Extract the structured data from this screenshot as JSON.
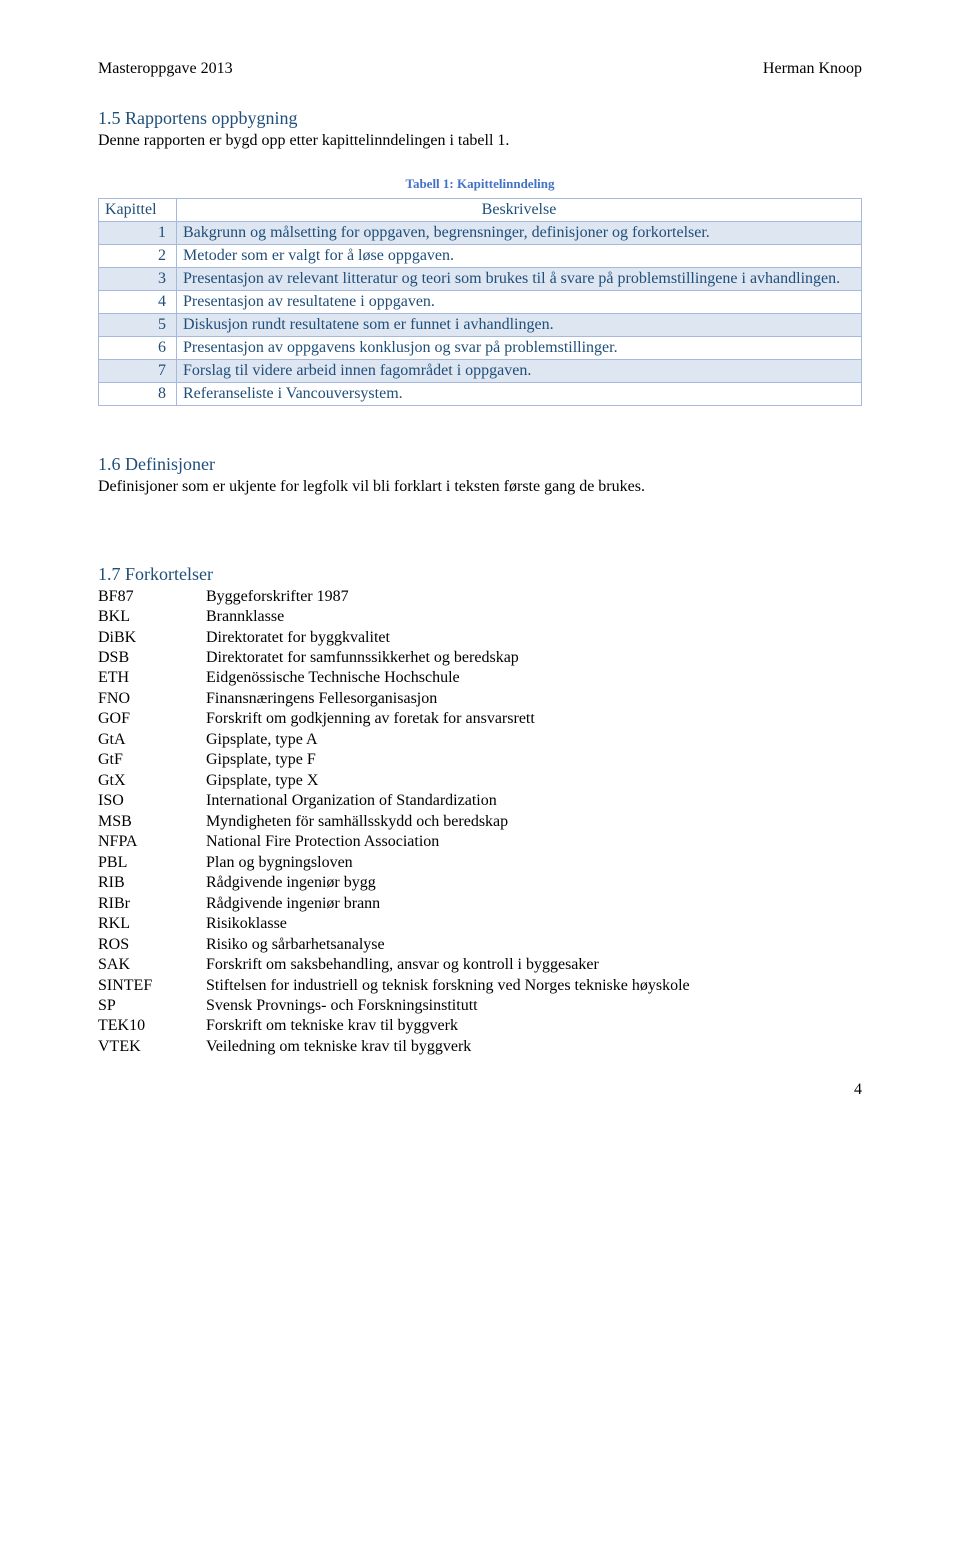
{
  "header": {
    "left": "Masteroppgave 2013",
    "right": "Herman Knoop"
  },
  "section_1_5": {
    "title": "1.5 Rapportens oppbygning",
    "text": "Denne rapporten er bygd opp etter kapittelinndelingen i tabell 1."
  },
  "table1": {
    "caption": "Tabell 1: Kapittelinndeling",
    "col_kapittel": "Kapittel",
    "col_beskrivelse": "Beskrivelse",
    "rows": [
      {
        "n": "1",
        "d": "Bakgrunn og målsetting for oppgaven, begrensninger, definisjoner og forkortelser."
      },
      {
        "n": "2",
        "d": "Metoder som er valgt for å løse oppgaven."
      },
      {
        "n": "3",
        "d": "Presentasjon av relevant litteratur og teori som brukes til å svare på problemstillingene i avhandlingen."
      },
      {
        "n": "4",
        "d": "Presentasjon av resultatene i oppgaven."
      },
      {
        "n": "5",
        "d": "Diskusjon rundt resultatene som er funnet i avhandlingen."
      },
      {
        "n": "6",
        "d": "Presentasjon av oppgavens konklusjon og svar på problemstillinger."
      },
      {
        "n": "7",
        "d": "Forslag til videre arbeid innen fagområdet i oppgaven."
      },
      {
        "n": "8",
        "d": "Referanseliste i Vancouversystem."
      }
    ]
  },
  "section_1_6": {
    "title": "1.6 Definisjoner",
    "text": "Definisjoner som er ukjente for legfolk vil bli forklart i teksten første gang de brukes."
  },
  "section_1_7": {
    "title": "1.7 Forkortelser",
    "items": [
      {
        "k": "BF87",
        "v": "Byggeforskrifter 1987"
      },
      {
        "k": "BKL",
        "v": "Brannklasse"
      },
      {
        "k": "DiBK",
        "v": "Direktoratet for byggkvalitet"
      },
      {
        "k": "DSB",
        "v": "Direktoratet for samfunnssikkerhet og beredskap"
      },
      {
        "k": "ETH",
        "v": "Eidgenössische Technische Hochschule"
      },
      {
        "k": "FNO",
        "v": "Finansnæringens Fellesorganisasjon"
      },
      {
        "k": "GOF",
        "v": "Forskrift om godkjenning av foretak for ansvarsrett"
      },
      {
        "k": "GtA",
        "v": "Gipsplate, type A"
      },
      {
        "k": "GtF",
        "v": "Gipsplate, type F"
      },
      {
        "k": "GtX",
        "v": "Gipsplate, type X"
      },
      {
        "k": "ISO",
        "v": "International Organization of Standardization"
      },
      {
        "k": "MSB",
        "v": "Myndigheten för samhällsskydd och beredskap"
      },
      {
        "k": "NFPA",
        "v": "National Fire Protection Association"
      },
      {
        "k": "PBL",
        "v": "Plan og bygningsloven"
      },
      {
        "k": "RIB",
        "v": "Rådgivende ingeniør bygg"
      },
      {
        "k": "RIBr",
        "v": "Rådgivende ingeniør brann"
      },
      {
        "k": "RKL",
        "v": "Risikoklasse"
      },
      {
        "k": "ROS",
        "v": "Risiko og sårbarhetsanalyse"
      },
      {
        "k": "SAK",
        "v": "Forskrift om saksbehandling, ansvar og kontroll i byggesaker"
      },
      {
        "k": "SINTEF",
        "v": "Stiftelsen for industriell og teknisk forskning ved Norges tekniske høyskole"
      },
      {
        "k": "SP",
        "v": "Svensk Provnings- och Forskningsinstitutt"
      },
      {
        "k": "TEK10",
        "v": "Forskrift om tekniske krav til byggverk"
      },
      {
        "k": "VTEK",
        "v": "Veiledning om tekniske krav til byggverk"
      }
    ]
  },
  "page_number": "4",
  "colors": {
    "heading": "#1f4e79",
    "caption": "#4472c4",
    "table_border": "#a6b8de",
    "table_row_alt": "#dee6f2",
    "text": "#000000",
    "background": "#ffffff"
  }
}
